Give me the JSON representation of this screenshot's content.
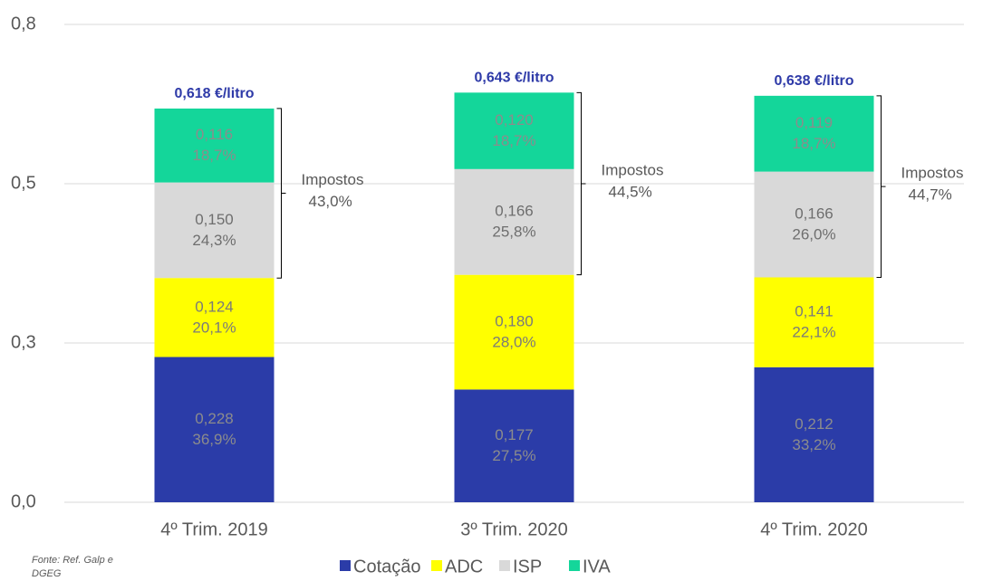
{
  "chart_data": {
    "type": "stacked-bar",
    "categories": [
      "4º Trim. 2019",
      "3º Trim. 2020",
      "4º Trim. 2020"
    ],
    "series": [
      {
        "name": "Cotação",
        "color": "#2b3ca8",
        "label_color": "#8c8c8c",
        "values": [
          0.228,
          0.177,
          0.212
        ],
        "value_labels": [
          "0,228",
          "0,177",
          "0,212"
        ],
        "percents": [
          36.9,
          27.5,
          33.2
        ],
        "percent_labels": [
          "36,9%",
          "27,5%",
          "33,2%"
        ]
      },
      {
        "name": "ADC",
        "color": "#ffff00",
        "label_color": "#7a7a7a",
        "values": [
          0.124,
          0.18,
          0.141
        ],
        "value_labels": [
          "0,124",
          "0,180",
          "0,141"
        ],
        "percents": [
          20.1,
          28.0,
          22.1
        ],
        "percent_labels": [
          "20,1%",
          "28,0%",
          "22,1%"
        ]
      },
      {
        "name": "ISP",
        "color": "#d9d9d9",
        "label_color": "#6e6e6e",
        "values": [
          0.15,
          0.166,
          0.166
        ],
        "value_labels": [
          "0,150",
          "0,166",
          "0,166"
        ],
        "percents": [
          24.3,
          25.8,
          26.0
        ],
        "percent_labels": [
          "24,3%",
          "25,8%",
          "26,0%"
        ]
      },
      {
        "name": "IVA",
        "color": "#14d69a",
        "label_color": "#8c8c8c",
        "values": [
          0.116,
          0.12,
          0.119
        ],
        "value_labels": [
          "0,116",
          "0,120",
          "0,119"
        ],
        "percents": [
          18.7,
          18.7,
          18.7
        ],
        "percent_labels": [
          "18,7%",
          "18,7%",
          "18,7%"
        ]
      }
    ],
    "totals": [
      0.618,
      0.643,
      0.638
    ],
    "total_labels": [
      "0,618 €/litro",
      "0,643 €/litro",
      "0,638 €/litro"
    ],
    "total_color": "#2e3aa8",
    "taxes": {
      "label": "Impostos",
      "values": [
        43.0,
        44.5,
        44.7
      ],
      "value_labels": [
        "43,0%",
        "44,5%",
        "44,7%"
      ]
    },
    "ylim": [
      0,
      0.75
    ],
    "yticks": [
      {
        "value": 0,
        "label": "0,0"
      },
      {
        "value": 0.25,
        "label": "0,3"
      },
      {
        "value": 0.5,
        "label": "0,5"
      },
      {
        "value": 0.75,
        "label": "0,8"
      }
    ],
    "grid": true,
    "source": "Fonte: Ref. Galp e DGEG"
  }
}
